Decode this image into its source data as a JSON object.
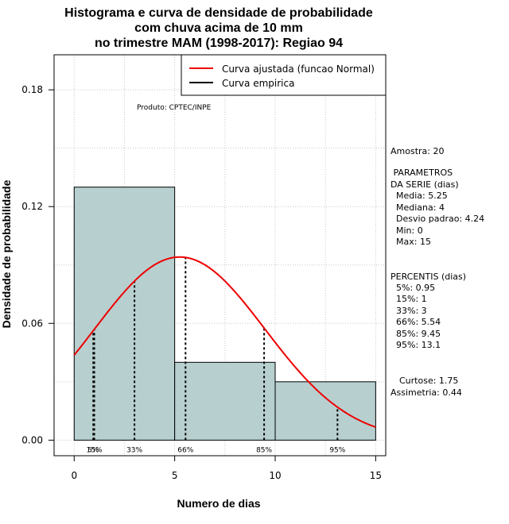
{
  "chart_data": {
    "type": "histogram",
    "title_lines": [
      "Histograma e curva de densidade de probabilidade",
      "com chuva acima de 10 mm",
      "no trimestre MAM (1998-2017): Regiao 94"
    ],
    "xlabel": "Numero de dias",
    "ylabel": "Densidade de probabilidade",
    "xlim": [
      -1,
      15.5
    ],
    "ylim": [
      -0.008,
      0.198
    ],
    "x_ticks": [
      "0",
      "5",
      "10",
      "15"
    ],
    "y_ticks": [
      "0.00",
      "0.06",
      "0.12",
      "0.18"
    ],
    "grid": true,
    "bars": [
      {
        "x0": 0,
        "x1": 5,
        "density": 0.13
      },
      {
        "x0": 5,
        "x1": 10,
        "density": 0.04
      },
      {
        "x0": 10,
        "x1": 15,
        "density": 0.03
      }
    ],
    "bar_color": "#b7cfcf",
    "normal_curve": {
      "name": "Curva ajustada (funcao Normal)",
      "mean": 5.25,
      "sd": 4.24,
      "color": "#ee0000"
    },
    "empirical_curve": {
      "name": "Curva empirica",
      "color": "#000000"
    },
    "legend_position": "top-right",
    "product_label": "Produto: CPTEC/INPE",
    "percentile_lines": [
      {
        "label": "5%",
        "x": 0.95
      },
      {
        "label": "15%",
        "x": 1
      },
      {
        "label": "33%",
        "x": 3
      },
      {
        "label": "66%",
        "x": 5.54
      },
      {
        "label": "85%",
        "x": 9.45
      },
      {
        "label": "95%",
        "x": 13.1
      }
    ],
    "side_stats": {
      "amostra": "Amostra: 20",
      "parametros_title_1": " PARAMETROS",
      "parametros_title_2": "DA SERIE (dias)",
      "parametros": [
        "Media: 5.25",
        "Mediana: 4",
        "Desvio padrao: 4.24",
        "Min: 0",
        "Max: 15"
      ],
      "percentis_title": "PERCENTIS (dias)",
      "percentis": [
        "5%: 0.95",
        "15%: 1",
        "33%: 3",
        "66%: 5.54",
        "85%: 9.45",
        "95%: 13.1"
      ],
      "curtose": "Curtose: 1.75",
      "assimetria": "Assimetria: 0.44"
    }
  }
}
